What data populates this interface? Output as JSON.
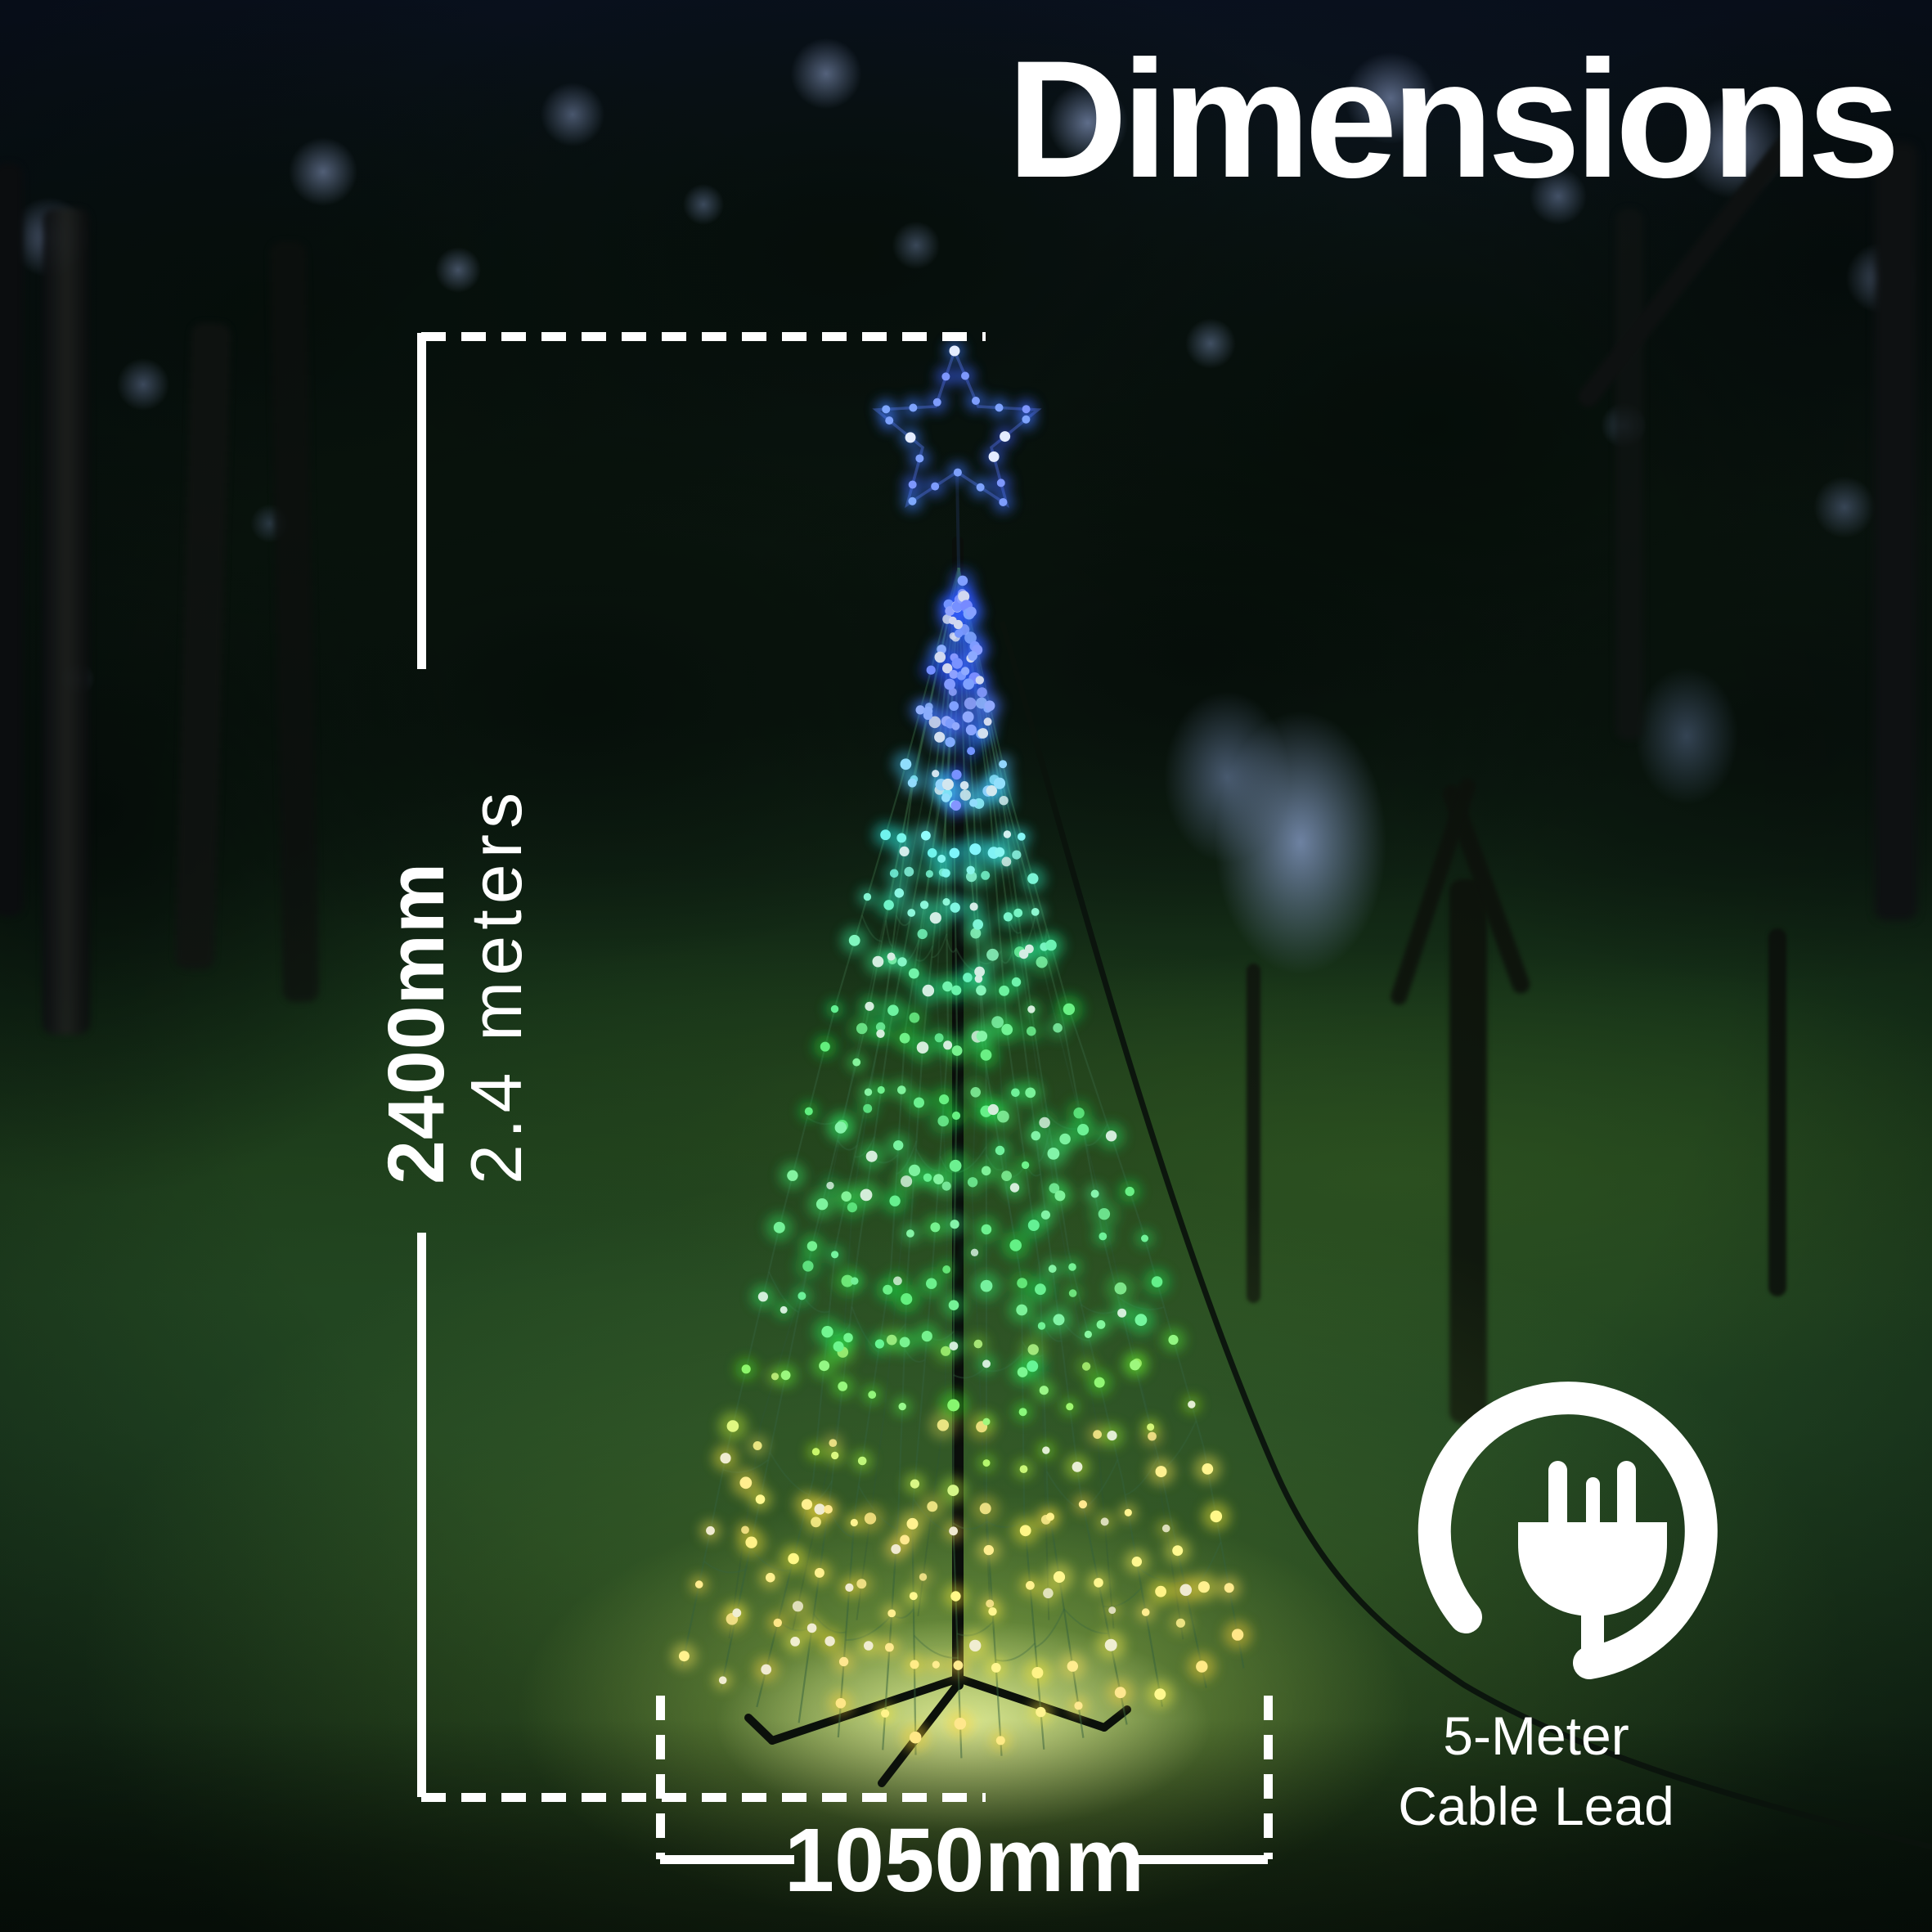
{
  "title": "Dimensions",
  "annotations": {
    "height": {
      "value_mm": "2400mm",
      "value_m": "2.4 meters"
    },
    "width": {
      "value_mm": "1050mm"
    },
    "cable": {
      "icon": "power-plug-icon",
      "line1": "5-Meter",
      "line2": "Cable Lead"
    }
  },
  "colors": {
    "annotation": "#ffffff",
    "led_blue": "#3355ff",
    "led_cyan": "#35d8c0",
    "led_green": "#33dd66",
    "led_yellow": "#ffd957",
    "star_blue": "#4a66ff",
    "ground_glow": "#cfe27a"
  }
}
